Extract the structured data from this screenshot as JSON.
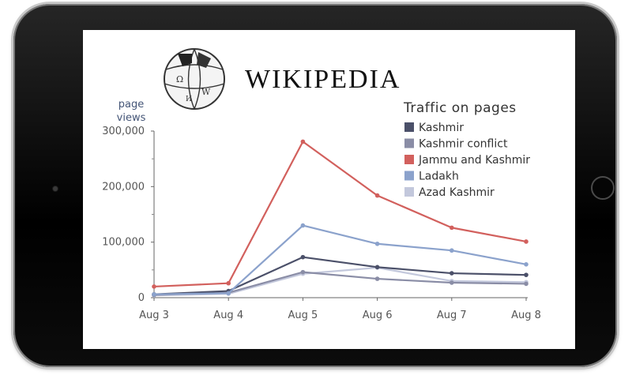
{
  "logo": {
    "wordmark": "WIKIPEDIA",
    "icon": "puzzle-globe-icon"
  },
  "colors": {
    "axis": "#555555",
    "tick_text": "#555555",
    "grid": "none"
  },
  "chart_data": {
    "type": "line",
    "title": "Traffic on pages",
    "ylabel": "page views",
    "xlabel": "",
    "categories": [
      "Aug 3",
      "Aug 4",
      "Aug 5",
      "Aug 6",
      "Aug 7",
      "Aug 8"
    ],
    "ylim": [
      0,
      300000
    ],
    "yticks": [
      0,
      100000,
      200000,
      300000
    ],
    "ytick_labels": [
      "0",
      "100,000",
      "200,000",
      "300,000"
    ],
    "grid": false,
    "legend_position": "top-right",
    "series": [
      {
        "name": "Kashmir",
        "color": "#4b5069",
        "values": [
          6000,
          12000,
          73000,
          55000,
          44000,
          41000
        ]
      },
      {
        "name": "Kashmir conflict",
        "color": "#8a8da6",
        "values": [
          5000,
          9000,
          46000,
          34000,
          27000,
          25000
        ]
      },
      {
        "name": "Jammu and Kashmir",
        "color": "#d2605d",
        "values": [
          20000,
          26000,
          281000,
          184000,
          126000,
          101000
        ]
      },
      {
        "name": "Ladakh",
        "color": "#8ba2cc",
        "values": [
          6000,
          8000,
          130000,
          97000,
          85000,
          60000
        ]
      },
      {
        "name": "Azad Kashmir",
        "color": "#c3c8dc",
        "values": [
          4000,
          7000,
          43000,
          54000,
          30000,
          28000
        ]
      }
    ]
  }
}
